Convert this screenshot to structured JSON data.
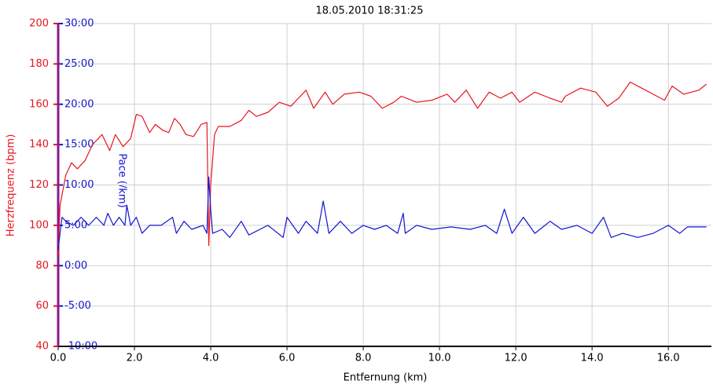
{
  "chart_data": {
    "type": "line",
    "title": "18.05.2010 18:31:25",
    "x_label": "Entfernung (km)",
    "y_label": "Herzfrequenz (bpm)",
    "y2_label": "Pace (/km)",
    "xlim": [
      0,
      17.13
    ],
    "ylim": [
      40,
      200
    ],
    "y2lim": [
      -10,
      30
    ],
    "grid": true,
    "xticks": [
      {
        "value": 0,
        "label": "0.0"
      },
      {
        "value": 2,
        "label": "2.0"
      },
      {
        "value": 4,
        "label": "4.0"
      },
      {
        "value": 6,
        "label": "6.0"
      },
      {
        "value": 8,
        "label": "8.0"
      },
      {
        "value": 10,
        "label": "10.0"
      },
      {
        "value": 12,
        "label": "12.0"
      },
      {
        "value": 14,
        "label": "14.0"
      },
      {
        "value": 16,
        "label": "16.0"
      }
    ],
    "yticks": [
      40,
      60,
      80,
      100,
      120,
      140,
      160,
      180,
      200
    ],
    "y2ticks": [
      {
        "value": -10,
        "label": "-10:00"
      },
      {
        "value": -5,
        "label": "-5:00"
      },
      {
        "value": 0,
        "label": "0:00"
      },
      {
        "value": 5,
        "label": "5:00"
      },
      {
        "value": 10,
        "label": "10:00"
      },
      {
        "value": 15,
        "label": "15:00"
      },
      {
        "value": 20,
        "label": "20:00"
      },
      {
        "value": 25,
        "label": "25:00"
      },
      {
        "value": 30,
        "label": "30:00"
      }
    ],
    "series": [
      {
        "name": "Herzfrequenz",
        "color": "#e8141e",
        "x": [
          0.0,
          0.05,
          0.1,
          0.2,
          0.35,
          0.5,
          0.7,
          0.9,
          1.15,
          1.35,
          1.5,
          1.7,
          1.9,
          2.05,
          2.2,
          2.4,
          2.55,
          2.75,
          2.9,
          3.05,
          3.2,
          3.35,
          3.55,
          3.75,
          3.9,
          3.95,
          4.0,
          4.1,
          4.2,
          4.5,
          4.8,
          5.0,
          5.2,
          5.5,
          5.8,
          6.1,
          6.5,
          6.7,
          7.0,
          7.2,
          7.5,
          7.9,
          8.2,
          8.5,
          8.8,
          9.0,
          9.4,
          9.8,
          10.2,
          10.4,
          10.7,
          11.0,
          11.3,
          11.6,
          11.9,
          12.1,
          12.5,
          12.9,
          13.2,
          13.3,
          13.7,
          14.1,
          14.4,
          14.7,
          15.0,
          15.3,
          15.6,
          15.9,
          16.1,
          16.4,
          16.8,
          17.0
        ],
        "values": [
          85,
          110,
          115,
          125,
          131,
          128,
          132,
          140,
          145,
          137,
          145,
          139,
          143,
          155,
          154,
          146,
          150,
          147,
          146,
          153,
          150,
          145,
          144,
          150,
          151,
          90,
          120,
          145,
          149,
          149,
          152,
          157,
          154,
          156,
          161,
          159,
          167,
          158,
          166,
          160,
          165,
          166,
          164,
          158,
          161,
          164,
          161,
          162,
          165,
          161,
          167,
          158,
          166,
          163,
          166,
          161,
          166,
          163,
          161,
          164,
          168,
          166,
          159,
          163,
          171,
          168,
          165,
          162,
          169,
          165,
          167,
          170
        ]
      },
      {
        "name": "Pace",
        "color": "#1414d2",
        "axis": "y2",
        "x": [
          0.0,
          0.05,
          0.1,
          0.2,
          0.4,
          0.6,
          0.8,
          1.0,
          1.2,
          1.3,
          1.45,
          1.6,
          1.75,
          1.8,
          1.9,
          2.05,
          2.2,
          2.4,
          2.7,
          3.0,
          3.1,
          3.3,
          3.5,
          3.8,
          3.9,
          3.95,
          4.0,
          4.05,
          4.3,
          4.5,
          4.8,
          5.0,
          5.5,
          5.9,
          6.0,
          6.3,
          6.5,
          6.8,
          6.95,
          7.1,
          7.4,
          7.7,
          8.0,
          8.3,
          8.6,
          8.9,
          9.05,
          9.1,
          9.4,
          9.8,
          10.3,
          10.8,
          11.2,
          11.5,
          11.7,
          11.9,
          12.2,
          12.5,
          12.9,
          13.2,
          13.6,
          14.0,
          14.3,
          14.5,
          14.8,
          15.2,
          15.6,
          16.0,
          16.3,
          16.5,
          17.0
        ],
        "values": [
          2,
          4,
          6,
          5.5,
          5,
          6,
          5,
          6,
          5,
          6.5,
          5,
          6,
          5,
          7.5,
          5,
          6,
          4,
          5,
          5,
          6,
          4,
          5.5,
          4.5,
          5,
          4,
          11,
          7,
          4,
          4.5,
          3.5,
          5.5,
          3.8,
          5,
          3.5,
          6,
          4,
          5.5,
          4,
          8,
          4,
          5.5,
          4,
          5,
          4.5,
          5,
          4,
          6.5,
          4,
          5,
          4.5,
          4.8,
          4.5,
          5,
          4,
          7,
          4,
          6,
          4,
          5.5,
          4.5,
          5,
          4,
          6,
          3.5,
          4,
          3.5,
          4,
          5,
          4,
          4.8,
          4.8
        ]
      }
    ]
  }
}
